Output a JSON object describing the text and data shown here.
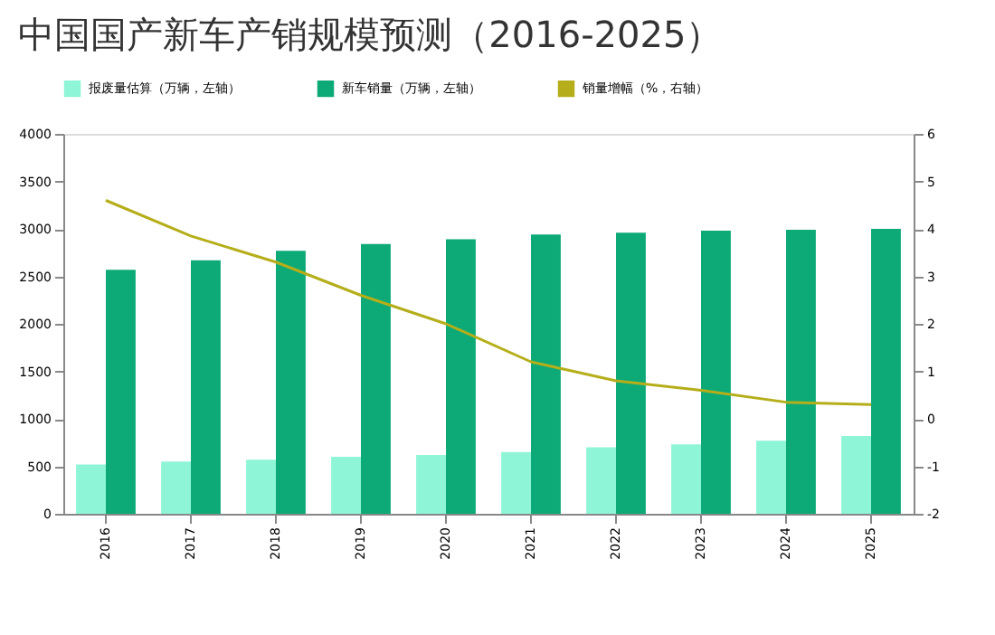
{
  "chart_data": {
    "type": "bar",
    "title": "中国国产新车产销规模预测（2016-2025）",
    "categories": [
      "2016",
      "2017",
      "2018",
      "2019",
      "2020",
      "2021",
      "2022",
      "2023",
      "2024",
      "2025"
    ],
    "series": [
      {
        "name": "报废量估算（万辆，左轴）",
        "color": "#8ef5d6",
        "values": [
          520,
          550,
          570,
          600,
          620,
          650,
          700,
          730,
          770,
          820
        ]
      },
      {
        "name": "新车销量（万辆，左轴）",
        "color": "#0daa78",
        "values": [
          2570,
          2670,
          2770,
          2840,
          2890,
          2940,
          2960,
          2980,
          2990,
          3000
        ]
      },
      {
        "name": "销量增幅（%，右轴）",
        "type": "line",
        "axis": "y2",
        "color": "#b5ae1a",
        "values": [
          4.6,
          3.85,
          3.3,
          2.6,
          2.0,
          1.2,
          0.8,
          0.6,
          0.35,
          0.3
        ]
      }
    ],
    "ylim": [
      0,
      4000
    ],
    "yticks": [
      0,
      500,
      1000,
      1500,
      2000,
      2500,
      3000,
      3500,
      4000
    ],
    "y2lim": [
      -2,
      6
    ],
    "y2ticks": [
      -2,
      -1,
      0,
      1,
      2,
      3,
      4,
      5,
      6
    ],
    "grid": false,
    "legend": "top",
    "marker": "none"
  }
}
